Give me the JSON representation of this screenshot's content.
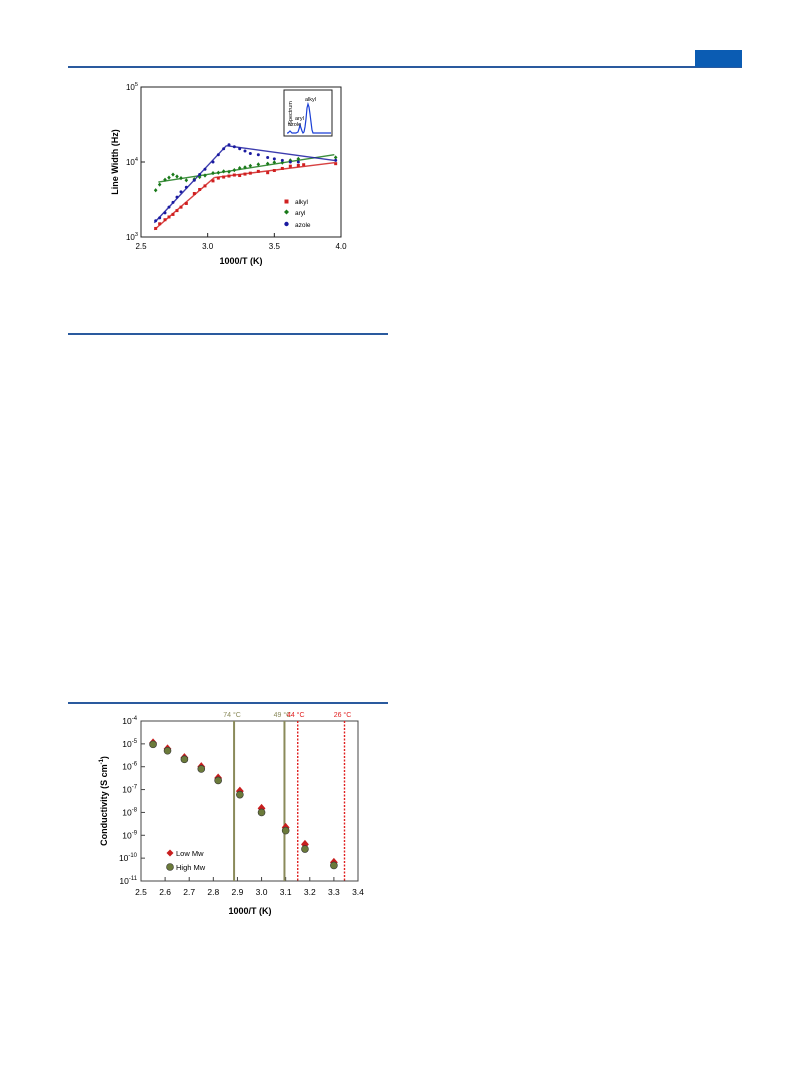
{
  "page": {
    "colors": {
      "rule": "#2a5a9e",
      "header_block": "#0b5cb3"
    }
  },
  "chart_data": [
    {
      "type": "scatter",
      "xlabel": "1000/T (K)",
      "ylabel": "Line Width (Hz)",
      "x_scale": "linear",
      "y_scale": "log",
      "xlim": [
        2.5,
        4.0
      ],
      "ylim": [
        1000,
        100000
      ],
      "x_ticks": [
        "2.5",
        "3.0",
        "3.5",
        "4.0"
      ],
      "y_tick_bases": [
        "10",
        "10",
        "10"
      ],
      "y_tick_exps": [
        "3",
        "4",
        "5"
      ],
      "grid": false,
      "legend_position": "lower-right",
      "series": [
        {
          "name": "alkyl",
          "color": "#d02020",
          "marker": "square",
          "points": [
            [
              2.61,
              1300
            ],
            [
              2.64,
              1500
            ],
            [
              2.68,
              1700
            ],
            [
              2.71,
              1850
            ],
            [
              2.74,
              2000
            ],
            [
              2.77,
              2250
            ],
            [
              2.8,
              2500
            ],
            [
              2.84,
              2800
            ],
            [
              2.9,
              3800
            ],
            [
              2.94,
              4300
            ],
            [
              2.98,
              4800
            ],
            [
              3.04,
              5600
            ],
            [
              3.08,
              6100
            ],
            [
              3.12,
              6300
            ],
            [
              3.16,
              6500
            ],
            [
              3.2,
              6700
            ],
            [
              3.24,
              6600
            ],
            [
              3.28,
              6900
            ],
            [
              3.32,
              7100
            ],
            [
              3.38,
              7500
            ],
            [
              3.45,
              7200
            ],
            [
              3.5,
              7700
            ],
            [
              3.56,
              8200
            ],
            [
              3.62,
              8800
            ],
            [
              3.68,
              9000
            ],
            [
              3.72,
              9200
            ],
            [
              3.96,
              9500
            ]
          ],
          "fit": [
            [
              [
                2.6,
                1250
              ],
              [
                3.05,
                6200
              ]
            ],
            [
              [
                3.05,
                6200
              ],
              [
                3.95,
                9800
              ]
            ]
          ]
        },
        {
          "name": "aryl",
          "color": "#1a7a1a",
          "marker": "diamond",
          "points": [
            [
              2.61,
              4200
            ],
            [
              2.64,
              5000
            ],
            [
              2.68,
              5800
            ],
            [
              2.71,
              6200
            ],
            [
              2.74,
              6800
            ],
            [
              2.77,
              6400
            ],
            [
              2.8,
              6100
            ],
            [
              2.84,
              5700
            ],
            [
              2.9,
              5900
            ],
            [
              2.94,
              6300
            ],
            [
              2.98,
              6600
            ],
            [
              3.04,
              7100
            ],
            [
              3.08,
              7200
            ],
            [
              3.12,
              7500
            ],
            [
              3.16,
              7400
            ],
            [
              3.2,
              7800
            ],
            [
              3.24,
              8300
            ],
            [
              3.28,
              8500
            ],
            [
              3.32,
              8900
            ],
            [
              3.38,
              9300
            ],
            [
              3.45,
              9500
            ],
            [
              3.5,
              9900
            ],
            [
              3.56,
              9800
            ],
            [
              3.62,
              10500
            ],
            [
              3.68,
              11000
            ],
            [
              3.96,
              11500
            ]
          ],
          "fit": [
            [
              [
                2.63,
                5400
              ],
              [
                3.95,
                12500
              ]
            ]
          ]
        },
        {
          "name": "azole",
          "color": "#1a1aa0",
          "marker": "circle",
          "points": [
            [
              2.61,
              1650
            ],
            [
              2.64,
              1800
            ],
            [
              2.68,
              2100
            ],
            [
              2.71,
              2500
            ],
            [
              2.74,
              2900
            ],
            [
              2.77,
              3400
            ],
            [
              2.8,
              4000
            ],
            [
              2.84,
              4600
            ],
            [
              2.9,
              5700
            ],
            [
              2.94,
              6800
            ],
            [
              2.98,
              8000
            ],
            [
              3.04,
              10000
            ],
            [
              3.08,
              12500
            ],
            [
              3.12,
              15000
            ],
            [
              3.16,
              17000
            ],
            [
              3.2,
              16000
            ],
            [
              3.24,
              15000
            ],
            [
              3.28,
              14000
            ],
            [
              3.32,
              13000
            ],
            [
              3.38,
              12500
            ],
            [
              3.45,
              11500
            ],
            [
              3.5,
              11000
            ],
            [
              3.56,
              10500
            ],
            [
              3.62,
              10000
            ],
            [
              3.68,
              10000
            ],
            [
              3.96,
              10500
            ]
          ],
          "fit": [
            [
              [
                2.6,
                1550
              ],
              [
                3.14,
                16500
              ]
            ],
            [
              [
                3.14,
                16500
              ],
              [
                3.95,
                10500
              ]
            ]
          ]
        }
      ],
      "inset": {
        "ylabel": "Spectrum",
        "peak_labels": [
          "azole",
          "aryl",
          "alkyl"
        ],
        "color": "#1a3fd6"
      }
    },
    {
      "type": "scatter",
      "xlabel": "1000/T (K)",
      "ylabel_main": "Conductivity (S cm",
      "ylabel_sup": "-1",
      "ylabel_end": ")",
      "x_scale": "linear",
      "y_scale": "log",
      "xlim": [
        2.5,
        3.4
      ],
      "ylim": [
        -11,
        -4
      ],
      "x_ticks": [
        "2.5",
        "2.6",
        "2.7",
        "2.8",
        "2.9",
        "3.0",
        "3.1",
        "3.2",
        "3.3",
        "3.4"
      ],
      "y_tick_bases": [
        "10",
        "10",
        "10",
        "10",
        "10",
        "10",
        "10",
        "10"
      ],
      "y_tick_exps": [
        "-4",
        "-5",
        "-6",
        "-7",
        "-8",
        "-9",
        "-10",
        "-11"
      ],
      "grid": false,
      "legend_position": "lower-left",
      "vlines": [
        {
          "x": 2.886,
          "label": "74 °C",
          "color": "#8a8a5a",
          "style": "solid"
        },
        {
          "x": 3.095,
          "label": "49 °C",
          "color": "#8a8a5a",
          "style": "solid"
        },
        {
          "x": 3.15,
          "label": "44 °C",
          "color": "#e02020",
          "style": "dotted"
        },
        {
          "x": 3.344,
          "label": "26 °C",
          "color": "#e02020",
          "style": "dotted"
        }
      ],
      "series": [
        {
          "name": "Low Mw",
          "color": "#c81e1e",
          "marker": "diamond",
          "points": [
            [
              2.55,
              1.1e-05
            ],
            [
              2.61,
              6e-06
            ],
            [
              2.68,
              2.5e-06
            ],
            [
              2.75,
              1e-06
            ],
            [
              2.82,
              3.2e-07
            ],
            [
              2.91,
              8.5e-08
            ],
            [
              3.0,
              1.5e-08
            ],
            [
              3.1,
              2.2e-09
            ],
            [
              3.18,
              4e-10
            ],
            [
              3.3,
              6.5e-11
            ]
          ]
        },
        {
          "name": "High Mw",
          "color": "#6b7a3a",
          "marker": "circle",
          "points": [
            [
              2.55,
              9.5e-06
            ],
            [
              2.61,
              5e-06
            ],
            [
              2.68,
              2.1e-06
            ],
            [
              2.75,
              8e-07
            ],
            [
              2.82,
              2.5e-07
            ],
            [
              2.91,
              6e-08
            ],
            [
              3.0,
              1e-08
            ],
            [
              3.1,
              1.6e-09
            ],
            [
              3.18,
              2.5e-10
            ],
            [
              3.3,
              4.8e-11
            ]
          ]
        }
      ]
    }
  ]
}
